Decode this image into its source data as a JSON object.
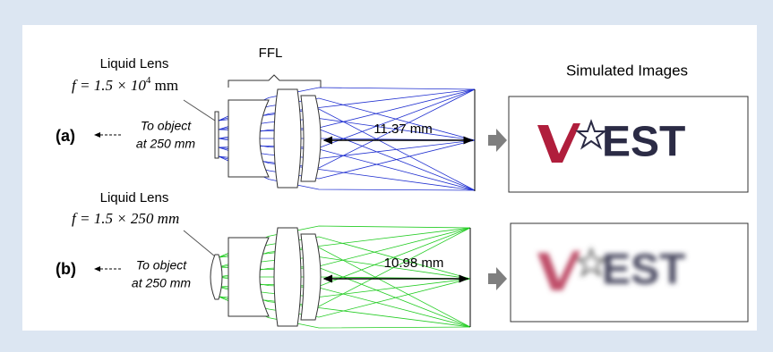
{
  "header": {
    "ffl": "FFL",
    "simulated": "Simulated Images"
  },
  "panels": [
    {
      "label": "(a)",
      "lens_name": "Liquid Lens",
      "formula": {
        "prefix": "f = 1.5 × 10",
        "sup": "4",
        "unit": " mm"
      },
      "object_line1": "To object",
      "object_line2": "at 250 mm",
      "distance": "11.37 mm",
      "logo": "EST"
    },
    {
      "label": "(b)",
      "lens_name": "Liquid Lens",
      "formula": {
        "prefix": "f = 1.5 × 250 mm"
      },
      "object_line1": "To object",
      "object_line2": "at 250 mm",
      "distance": "10.98 mm",
      "logo": "EST"
    }
  ]
}
